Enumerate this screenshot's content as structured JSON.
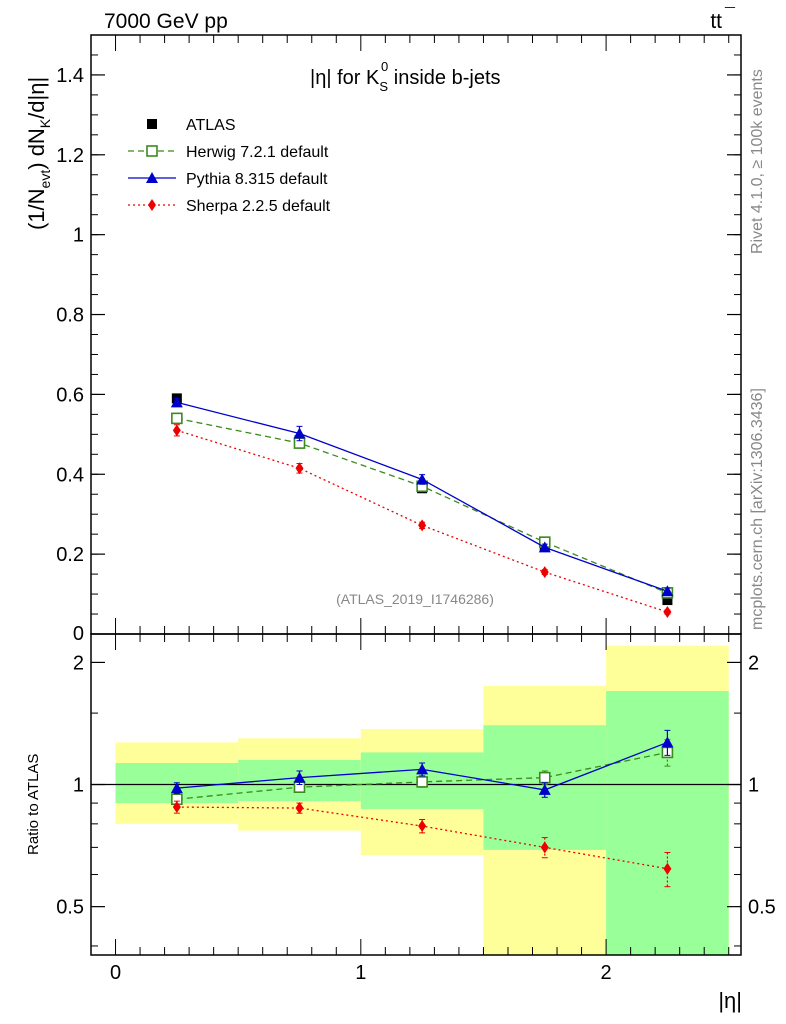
{
  "header": {
    "energy": "7000 GeV pp",
    "process_tt": "tt",
    "process_bar": "¯"
  },
  "side_labels": {
    "rivet": "Rivet 4.1.0, ≥ 100k events",
    "mcplots": "mcplots.cern.ch [arXiv:1306.3436]"
  },
  "chart_data": [
    {
      "type": "scatter",
      "panel": "main",
      "title_parts": {
        "eta": "|η| for K",
        "sup": "0",
        "sub": "S",
        "rest": " inside b-jets"
      },
      "ylabel_parts": {
        "a": "(1/N",
        "asub": "evt",
        "b": ") dN",
        "bsub": "K",
        "c": "/d|η|"
      },
      "xlim": [
        -0.1,
        2.55
      ],
      "ylim": [
        0,
        1.5
      ],
      "yticks": [
        0.2,
        0.4,
        0.6,
        0.8,
        1.0,
        1.2,
        1.4
      ],
      "ytick_labels": [
        "0.2",
        "0.4",
        "0.6",
        "0.8",
        "1",
        "1.2",
        "1.4"
      ],
      "ylabel_zero": "0",
      "watermark": "(ATLAS_2019_I1746286)",
      "x": [
        0.25,
        0.75,
        1.25,
        1.75,
        2.25
      ],
      "series": [
        {
          "name": "ATLAS",
          "color": "#000000",
          "marker": "square-filled",
          "line": "none",
          "values": [
            0.59,
            0.485,
            0.365,
            0.22,
            0.085
          ],
          "errors": [
            0.008,
            0.01,
            0.008,
            0.006,
            0.005
          ]
        },
        {
          "name": "Herwig 7.2.1 default",
          "color": "#3a8a1e",
          "marker": "square-open",
          "line": "dashed",
          "values": [
            0.54,
            0.478,
            0.37,
            0.23,
            0.103
          ],
          "errors": [
            0.008,
            0.008,
            0.008,
            0.006,
            0.005
          ]
        },
        {
          "name": "Pythia 8.315 default",
          "color": "#0000cc",
          "marker": "triangle",
          "line": "solid",
          "values": [
            0.58,
            0.502,
            0.387,
            0.217,
            0.107
          ],
          "errors": [
            0.01,
            0.018,
            0.012,
            0.008,
            0.008
          ]
        },
        {
          "name": "Sherpa 2.2.5 default",
          "color": "#ee0000",
          "marker": "diamond",
          "line": "dotted",
          "values": [
            0.51,
            0.415,
            0.272,
            0.155,
            0.055
          ],
          "errors": [
            0.014,
            0.012,
            0.008,
            0.006,
            0.005
          ]
        }
      ]
    },
    {
      "type": "scatter",
      "panel": "ratio",
      "ylabel": "Ratio to ATLAS",
      "yscale": "log",
      "ylim": [
        0.38,
        2.35
      ],
      "yticks": [
        0.5,
        1,
        2
      ],
      "ytick_labels": [
        "0.5",
        "1",
        "2"
      ],
      "xticks": [
        0,
        1,
        2
      ],
      "xtick_labels": [
        "0",
        "1",
        "2"
      ],
      "xlabel": "|η|",
      "bands": {
        "bins": [
          [
            0,
            0.5
          ],
          [
            0.5,
            1.0
          ],
          [
            1.0,
            1.5
          ],
          [
            1.5,
            2.0
          ],
          [
            2.0,
            2.5
          ]
        ],
        "yellow": [
          [
            0.8,
            1.27
          ],
          [
            0.77,
            1.3
          ],
          [
            0.67,
            1.37
          ],
          [
            0.38,
            1.75
          ],
          [
            0.38,
            2.2
          ]
        ],
        "green": [
          [
            0.9,
            1.13
          ],
          [
            0.91,
            1.15
          ],
          [
            0.87,
            1.2
          ],
          [
            0.69,
            1.4
          ],
          [
            0.38,
            1.7
          ]
        ],
        "yellow_color": "#ffff99",
        "green_color": "#99ff99"
      },
      "x": [
        0.25,
        0.75,
        1.25,
        1.75,
        2.25
      ],
      "series": [
        {
          "name": "Herwig 7.2.1 default",
          "color": "#3a8a1e",
          "marker": "square-open",
          "line": "dashed",
          "values": [
            0.92,
            0.985,
            1.015,
            1.04,
            1.2
          ],
          "errors": [
            0.02,
            0.02,
            0.03,
            0.04,
            0.09
          ]
        },
        {
          "name": "Pythia 8.315 default",
          "color": "#0000cc",
          "marker": "triangle",
          "line": "solid",
          "values": [
            0.98,
            1.04,
            1.09,
            0.97,
            1.27
          ],
          "errors": [
            0.03,
            0.04,
            0.04,
            0.04,
            0.09
          ]
        },
        {
          "name": "Sherpa 2.2.5 default",
          "color": "#ee0000",
          "marker": "diamond",
          "line": "dotted",
          "values": [
            0.88,
            0.875,
            0.79,
            0.7,
            0.62
          ],
          "errors": [
            0.03,
            0.025,
            0.03,
            0.04,
            0.06
          ]
        }
      ]
    }
  ]
}
